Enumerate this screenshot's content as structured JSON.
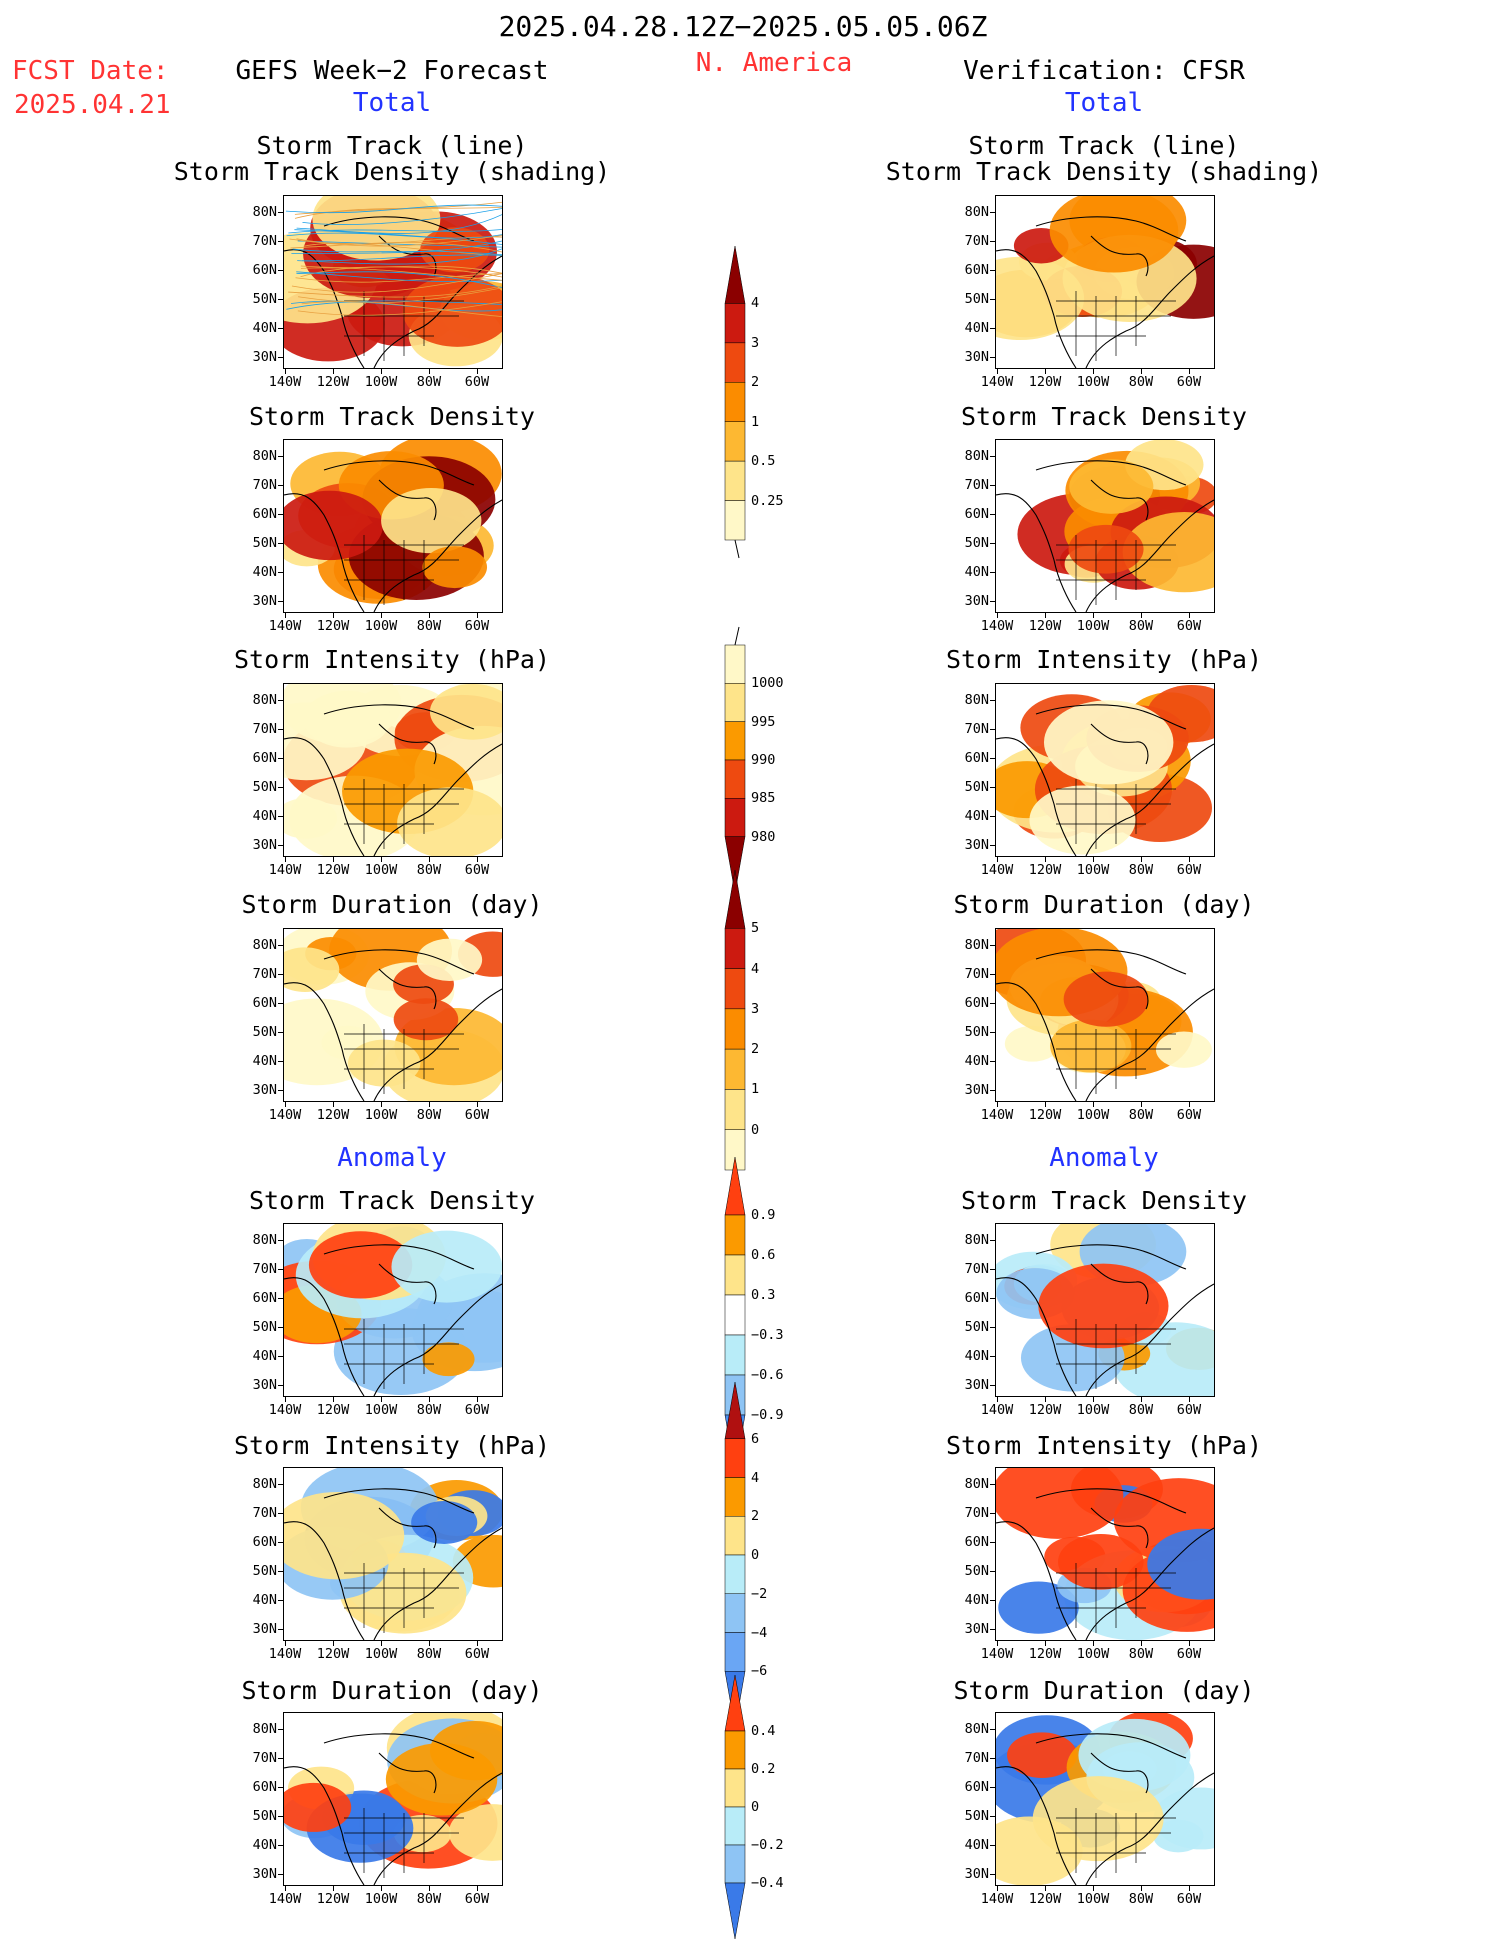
{
  "header": {
    "period": "2025.04.28.12Z−2025.05.05.06Z",
    "region": "N. America",
    "fcst_label": "FCST Date:",
    "fcst_date": "2025.04.21",
    "left_title": "GEFS Week−2 Forecast",
    "right_title": "Verification: CFSR",
    "left_total": "Total",
    "right_total": "Total",
    "left_anomaly": "Anomaly",
    "right_anomaly": "Anomaly"
  },
  "axes": {
    "lat_labels": [
      "80N",
      "70N",
      "60N",
      "50N",
      "40N",
      "30N"
    ],
    "lon_labels": [
      "140W",
      "120W",
      "100W",
      "80W",
      "60W"
    ]
  },
  "panels": {
    "track_title_1": "Storm Track (line)",
    "track_title_2": "Storm Track Density (shading)",
    "density_title": "Storm Track Density",
    "intensity_title": "Storm Intensity (hPa)",
    "duration_title": "Storm Duration (day)"
  },
  "colorbars": {
    "density_total": {
      "labels": [
        "4",
        "3",
        "2",
        "1",
        "0.5",
        "0.25"
      ],
      "colors": [
        "#8b0000",
        "#cc1a10",
        "#ee4a10",
        "#fb8c00",
        "#fdb832",
        "#fee48a",
        "#fff8c8"
      ]
    },
    "intensity_total": {
      "labels": [
        "1000",
        "995",
        "990",
        "985",
        "980"
      ],
      "colors": [
        "#fff8c8",
        "#fee48a",
        "#fb9a00",
        "#ee4a10",
        "#cc1a10",
        "#8b0000"
      ]
    },
    "duration_total": {
      "labels": [
        "5",
        "4",
        "3",
        "2",
        "1",
        "0"
      ],
      "colors": [
        "#8b0000",
        "#cc1a10",
        "#ee4a10",
        "#fb8c00",
        "#fdb832",
        "#fee48a",
        "#fff8c8"
      ]
    },
    "density_anom": {
      "labels": [
        "0.9",
        "0.6",
        "0.3",
        "−0.3",
        "−0.6",
        "−0.9"
      ],
      "colors": [
        "#ff4010",
        "#fb9a00",
        "#fee48a",
        "#ffffff",
        "#b8ecf8",
        "#8ec4f4",
        "#4a8ef0"
      ]
    },
    "intensity_anom": {
      "labels": [
        "6",
        "4",
        "2",
        "0",
        "−2",
        "−4",
        "−6"
      ],
      "colors": [
        "#b01010",
        "#ff4010",
        "#fb9a00",
        "#fee48a",
        "#b8ecf8",
        "#8ec4f4",
        "#6aa6f4",
        "#3a7ae8"
      ]
    },
    "duration_anom": {
      "labels": [
        "0.4",
        "0.2",
        "0",
        "−0.2",
        "−0.4"
      ],
      "colors": [
        "#ff4010",
        "#fb9a00",
        "#fee48a",
        "#b8ecf8",
        "#8ec4f4",
        "#3a7ae8"
      ]
    }
  }
}
